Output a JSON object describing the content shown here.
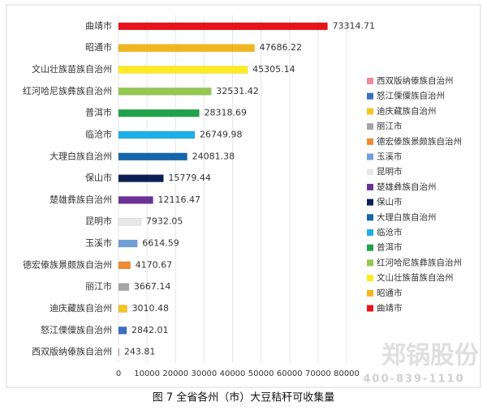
{
  "chart_data": {
    "type": "bar",
    "orientation": "horizontal",
    "caption": "图 7 全省各州（市）大豆秸秆可收集量",
    "categories": [
      "曲靖市",
      "昭通市",
      "文山壮族苗族自治州",
      "红河哈尼族彝族自治州",
      "普洱市",
      "临沧市",
      "大理白族自治州",
      "保山市",
      "楚雄彝族自治州",
      "昆明市",
      "玉溪市",
      "德宏傣族景颇族自治州",
      "丽江市",
      "迪庆藏族自治州",
      "怒江傈僳族自治州",
      "西双版纳傣族自治州"
    ],
    "values": [
      73314.71,
      47686.22,
      45305.14,
      32531.42,
      28318.69,
      26749.98,
      24081.38,
      15779.44,
      12116.47,
      7932.05,
      6614.59,
      4170.67,
      3667.14,
      3010.48,
      2842.01,
      243.81
    ],
    "colors": [
      "#e8131b",
      "#f2b51c",
      "#fdec1f",
      "#92c84f",
      "#1fa34a",
      "#1eaee8",
      "#1466ac",
      "#0c1f55",
      "#6a3296",
      "#e8e8e8",
      "#6fa0d8",
      "#ef8a32",
      "#a5a5a5",
      "#f4c422",
      "#3a6fc0",
      "#f28a9a"
    ],
    "xlim": [
      0,
      80000
    ],
    "xticks": [
      0,
      10000,
      20000,
      30000,
      40000,
      50000,
      60000,
      70000,
      80000
    ],
    "grid": true,
    "legend": "right",
    "watermark": {
      "name": "郑锅股份",
      "phone": "400-839-1110"
    }
  }
}
